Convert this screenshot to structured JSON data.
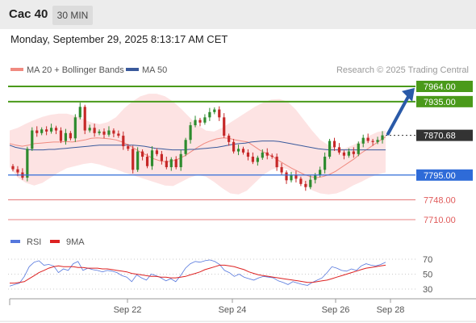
{
  "header": {
    "symbol": "Cac 40",
    "timeframe": "30 MIN",
    "datetime": "Monday, September 29, 2025 8:13:17 AM CET"
  },
  "legend": {
    "ma20_label": "MA 20 + Bollinger Bands",
    "ma50_label": "MA 50",
    "credit": "Research © 2025 Trading Central",
    "rsi_label": "RSI",
    "rsi_ma_label": "9MA"
  },
  "colors": {
    "ma20": "#f08a80",
    "band_fill": "#fde0e0",
    "ma50": "#3a5a9c",
    "up_candle": "#2e8b2e",
    "down_candle": "#c62828",
    "resistance": "#4a9a1a",
    "support_blue": "#2e6bd8",
    "support_red": "#e05a5a",
    "current_price": "#333333",
    "arrow": "#2a5aa8",
    "rsi": "#5577dd",
    "rsi_ma": "#dd2222"
  },
  "chart_data": [
    {
      "type": "candlestick",
      "x_ticks": [
        "Sep 22",
        "Sep 24",
        "Sep 26",
        "Sep 28"
      ],
      "levels": [
        {
          "value": 7964.0,
          "label": "7964.00",
          "kind": "resistance"
        },
        {
          "value": 7935.0,
          "label": "7935.00",
          "kind": "resistance"
        },
        {
          "value": 7870.68,
          "label": "7870.68",
          "kind": "current"
        },
        {
          "value": 7795.0,
          "label": "7795.00",
          "kind": "pivot"
        },
        {
          "value": 7748.0,
          "label": "7748.00",
          "kind": "support"
        },
        {
          "value": 7710.0,
          "label": "7710.00",
          "kind": "support"
        }
      ],
      "closes": [
        7806,
        7800,
        7790,
        7845,
        7880,
        7875,
        7882,
        7878,
        7885,
        7880,
        7860,
        7875,
        7865,
        7905,
        7925,
        7880,
        7885,
        7875,
        7878,
        7872,
        7880,
        7874,
        7870,
        7850,
        7845,
        7805,
        7840,
        7830,
        7812,
        7842,
        7835,
        7822,
        7810,
        7825,
        7810,
        7835,
        7862,
        7890,
        7900,
        7895,
        7905,
        7915,
        7920,
        7905,
        7870,
        7858,
        7840,
        7845,
        7838,
        7830,
        7820,
        7828,
        7838,
        7832,
        7830,
        7810,
        7800,
        7785,
        7795,
        7788,
        7778,
        7772,
        7786,
        7795,
        7805,
        7830,
        7860,
        7848,
        7838,
        7832,
        7840,
        7835,
        7855,
        7866,
        7860,
        7858,
        7862,
        7870.68
      ],
      "ma20": [
        7855,
        7852,
        7850,
        7852,
        7855,
        7856,
        7857,
        7858,
        7858,
        7859,
        7858,
        7860,
        7862,
        7865,
        7866,
        7865,
        7864,
        7862,
        7858,
        7852,
        7845,
        7838,
        7832,
        7826,
        7822,
        7820,
        7822,
        7826,
        7832,
        7840,
        7848,
        7855,
        7860,
        7864,
        7866,
        7865,
        7862,
        7860,
        7858,
        7850,
        7842,
        7836,
        7830,
        7822,
        7815,
        7808,
        7802,
        7796,
        7792,
        7790,
        7792,
        7796,
        7802,
        7810,
        7818,
        7826,
        7836,
        7844,
        7852,
        7860,
        7868
      ],
      "ma50": [
        7852,
        7848,
        7846,
        7844,
        7843,
        7843,
        7843,
        7844,
        7844,
        7845,
        7846,
        7847,
        7848,
        7849,
        7850,
        7851,
        7852,
        7852,
        7852,
        7852,
        7852,
        7852,
        7852,
        7851,
        7850,
        7848,
        7846,
        7845,
        7844,
        7843,
        7843,
        7843,
        7844,
        7844,
        7845,
        7846,
        7847,
        7848,
        7850,
        7852,
        7854,
        7855,
        7856,
        7858,
        7859,
        7860,
        7860,
        7860,
        7859,
        7857,
        7855,
        7853,
        7851,
        7849,
        7847,
        7845,
        7844,
        7843,
        7843,
        7843,
        7843,
        7843,
        7843,
        7843,
        7843,
        7843,
        7843,
        7843
      ],
      "bb_upper": [
        7880,
        7885,
        7893,
        7900,
        7906,
        7910,
        7912,
        7912,
        7908,
        7902,
        7895,
        7892,
        7896,
        7905,
        7922,
        7935,
        7945,
        7950,
        7950,
        7945,
        7935,
        7921,
        7905,
        7890,
        7880,
        7878,
        7885,
        7895,
        7905,
        7915,
        7925,
        7933,
        7939,
        7940,
        7935,
        7920,
        7900,
        7880,
        7862,
        7852,
        7846,
        7846,
        7852,
        7860,
        7870,
        7877,
        7880
      ],
      "bb_lower": [
        7810,
        7790,
        7780,
        7775,
        7780,
        7790,
        7800,
        7808,
        7812,
        7816,
        7818,
        7815,
        7810,
        7806,
        7800,
        7795,
        7790,
        7785,
        7780,
        7775,
        7774,
        7782,
        7790,
        7795,
        7792,
        7782,
        7770,
        7760,
        7758,
        7765,
        7780,
        7795,
        7805,
        7810,
        7806,
        7795,
        7780,
        7766,
        7760,
        7758,
        7760,
        7766,
        7775,
        7782,
        7790,
        7796,
        7800
      ],
      "y_range": [
        7700,
        7990
      ]
    },
    {
      "type": "line",
      "title": "RSI",
      "y_ticks": [
        70,
        50,
        30
      ],
      "ylim": [
        20,
        80
      ],
      "series": [
        {
          "name": "RSI",
          "values": [
            34,
            36,
            38,
            47,
            60,
            66,
            68,
            62,
            63,
            61,
            52,
            57,
            55,
            64,
            67,
            55,
            58,
            56,
            55,
            53,
            55,
            54,
            52,
            48,
            46,
            40,
            49,
            45,
            42,
            50,
            48,
            45,
            41,
            44,
            40,
            48,
            58,
            64,
            67,
            66,
            68,
            69,
            67,
            63,
            55,
            52,
            47,
            50,
            46,
            44,
            42,
            45,
            47,
            46,
            45,
            41,
            39,
            36,
            40,
            38,
            36,
            35,
            39,
            42,
            45,
            52,
            60,
            58,
            55,
            54,
            57,
            55,
            61,
            64,
            62,
            61,
            63,
            66
          ]
        },
        {
          "name": "9MA",
          "values": [
            38,
            38,
            39,
            40,
            44,
            48,
            52,
            55,
            58,
            60,
            61,
            60,
            60,
            60,
            59,
            59,
            58,
            58,
            58,
            57,
            57,
            56,
            55,
            54,
            53,
            51,
            50,
            49,
            48,
            47,
            47,
            46,
            46,
            45,
            45,
            46,
            47,
            49,
            51,
            53,
            56,
            58,
            60,
            62,
            62,
            61,
            60,
            58,
            56,
            53,
            51,
            49,
            48,
            47,
            46,
            45,
            44,
            43,
            42,
            41,
            40,
            39,
            39,
            40,
            41,
            42,
            44,
            46,
            48,
            50,
            52,
            54,
            56,
            58,
            59,
            60,
            61,
            62
          ]
        }
      ]
    }
  ]
}
